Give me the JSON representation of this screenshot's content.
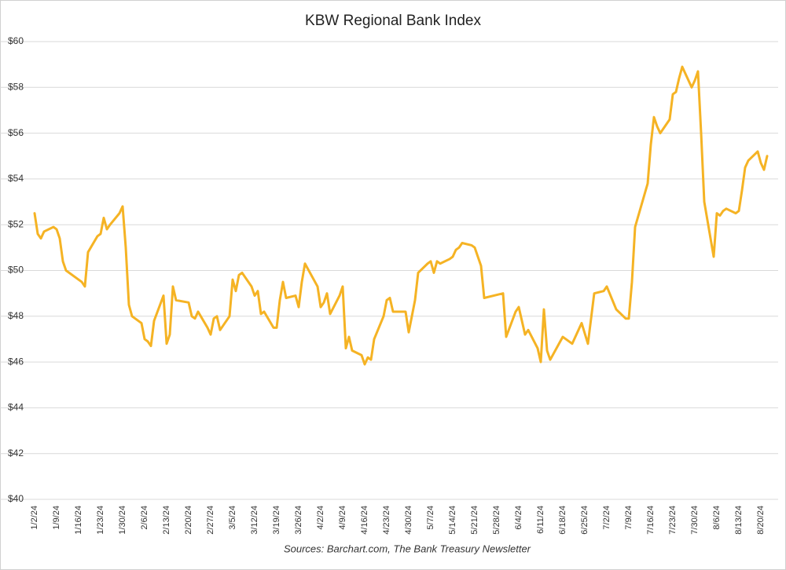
{
  "chart_data": {
    "type": "line",
    "title": "KBW Regional Bank Index",
    "source": "Sources: Barchart.com, The Bank Treasury Newsletter",
    "color": "#f5b324",
    "grid": true,
    "ylim": [
      40,
      60
    ],
    "yticks": [
      {
        "value": 40,
        "label": "$40"
      },
      {
        "value": 42,
        "label": "$42"
      },
      {
        "value": 44,
        "label": "$44"
      },
      {
        "value": 46,
        "label": "$46"
      },
      {
        "value": 48,
        "label": "$48"
      },
      {
        "value": 50,
        "label": "$50"
      },
      {
        "value": 52,
        "label": "$52"
      },
      {
        "value": 54,
        "label": "$54"
      },
      {
        "value": 56,
        "label": "$56"
      },
      {
        "value": 58,
        "label": "$58"
      },
      {
        "value": 60,
        "label": "$60"
      }
    ],
    "xticks": [
      "1/2/24",
      "1/9/24",
      "1/16/24",
      "1/23/24",
      "1/30/24",
      "2/6/24",
      "2/13/24",
      "2/20/24",
      "2/27/24",
      "3/5/24",
      "3/12/24",
      "3/19/24",
      "3/26/24",
      "4/2/24",
      "4/9/24",
      "4/16/24",
      "4/23/24",
      "4/30/24",
      "5/7/24",
      "5/14/24",
      "5/21/24",
      "5/28/24",
      "6/4/24",
      "6/11/24",
      "6/18/24",
      "6/25/24",
      "7/2/24",
      "7/9/24",
      "7/16/24",
      "7/23/24",
      "7/30/24",
      "8/6/24",
      "8/13/24",
      "8/20/24"
    ],
    "x": [
      "1/2/24",
      "1/3/24",
      "1/4/24",
      "1/5/24",
      "1/8/24",
      "1/9/24",
      "1/10/24",
      "1/11/24",
      "1/12/24",
      "1/16/24",
      "1/17/24",
      "1/18/24",
      "1/19/24",
      "1/22/24",
      "1/23/24",
      "1/24/24",
      "1/25/24",
      "1/26/24",
      "1/29/24",
      "1/30/24",
      "1/31/24",
      "2/1/24",
      "2/2/24",
      "2/5/24",
      "2/6/24",
      "2/7/24",
      "2/8/24",
      "2/9/24",
      "2/12/24",
      "2/13/24",
      "2/14/24",
      "2/15/24",
      "2/16/24",
      "2/20/24",
      "2/21/24",
      "2/22/24",
      "2/23/24",
      "2/26/24",
      "2/27/24",
      "2/28/24",
      "2/29/24",
      "3/1/24",
      "3/4/24",
      "3/5/24",
      "3/6/24",
      "3/7/24",
      "3/8/24",
      "3/11/24",
      "3/12/24",
      "3/13/24",
      "3/14/24",
      "3/15/24",
      "3/18/24",
      "3/19/24",
      "3/20/24",
      "3/21/24",
      "3/22/24",
      "3/25/24",
      "3/26/24",
      "3/27/24",
      "3/28/24",
      "4/1/24",
      "4/2/24",
      "4/3/24",
      "4/4/24",
      "4/5/24",
      "4/8/24",
      "4/9/24",
      "4/10/24",
      "4/11/24",
      "4/12/24",
      "4/15/24",
      "4/16/24",
      "4/17/24",
      "4/18/24",
      "4/19/24",
      "4/22/24",
      "4/23/24",
      "4/24/24",
      "4/25/24",
      "4/29/24",
      "4/30/24",
      "5/1/24",
      "5/2/24",
      "5/3/24",
      "5/6/24",
      "5/7/24",
      "5/8/24",
      "5/9/24",
      "5/10/24",
      "5/13/24",
      "5/14/24",
      "5/15/24",
      "5/16/24",
      "5/17/24",
      "5/20/24",
      "5/21/24",
      "5/22/24",
      "5/23/24",
      "5/24/24",
      "5/30/24",
      "5/31/24",
      "6/3/24",
      "6/4/24",
      "6/5/24",
      "6/6/24",
      "6/7/24",
      "6/10/24",
      "6/11/24",
      "6/12/24",
      "6/13/24",
      "6/14/24",
      "6/18/24",
      "6/21/24",
      "6/24/24",
      "6/26/24",
      "6/28/24",
      "7/1/24",
      "7/2/24",
      "7/5/24",
      "7/8/24",
      "7/9/24",
      "7/10/24",
      "7/11/24",
      "7/15/24",
      "7/16/24",
      "7/17/24",
      "7/18/24",
      "7/19/24",
      "7/22/24",
      "7/23/24",
      "7/24/24",
      "7/25/24",
      "7/26/24",
      "7/29/24",
      "7/30/24",
      "7/31/24",
      "8/1/24",
      "8/2/24",
      "8/5/24",
      "8/6/24",
      "8/7/24",
      "8/8/24",
      "8/9/24",
      "8/12/24",
      "8/13/24",
      "8/14/24",
      "8/15/24",
      "8/16/24",
      "8/19/24",
      "8/20/24",
      "8/21/24",
      "8/22/24"
    ],
    "values": [
      52.5,
      51.6,
      51.4,
      51.7,
      51.9,
      51.8,
      51.4,
      50.4,
      50.0,
      49.6,
      49.5,
      49.3,
      50.8,
      51.5,
      51.6,
      52.3,
      51.8,
      52.0,
      52.5,
      52.8,
      51.0,
      48.5,
      48.0,
      47.7,
      47.0,
      46.9,
      46.7,
      47.8,
      48.9,
      46.8,
      47.2,
      49.3,
      48.7,
      48.6,
      48.0,
      47.9,
      48.2,
      47.5,
      47.2,
      47.9,
      48.0,
      47.4,
      48.0,
      49.6,
      49.1,
      49.8,
      49.9,
      49.3,
      48.9,
      49.1,
      48.1,
      48.2,
      47.5,
      47.5,
      48.7,
      49.5,
      48.8,
      48.9,
      48.4,
      49.5,
      50.3,
      49.3,
      48.4,
      48.6,
      49.0,
      48.1,
      48.9,
      49.3,
      46.6,
      47.1,
      46.5,
      46.3,
      45.9,
      46.2,
      46.1,
      47.0,
      48.0,
      48.7,
      48.8,
      48.2,
      48.2,
      47.3,
      48.0,
      48.7,
      49.9,
      50.3,
      50.4,
      49.9,
      50.4,
      50.3,
      50.5,
      50.6,
      50.9,
      51.0,
      51.2,
      51.1,
      51.0,
      50.6,
      50.2,
      48.8,
      49.0,
      47.1,
      48.2,
      48.4,
      47.8,
      47.2,
      47.4,
      46.6,
      46.0,
      48.3,
      46.5,
      46.1,
      47.1,
      46.8,
      47.7,
      46.8,
      49.0,
      49.1,
      49.3,
      48.3,
      47.9,
      47.9,
      49.5,
      51.9,
      53.8,
      55.5,
      56.7,
      56.3,
      56.0,
      56.6,
      57.7,
      57.8,
      58.4,
      58.9,
      58.0,
      58.3,
      58.7,
      56.0,
      53.0,
      50.6,
      52.5,
      52.4,
      52.6,
      52.7,
      52.5,
      52.6,
      53.5,
      54.5,
      54.8,
      55.2,
      54.7,
      54.4,
      55.0
    ]
  }
}
